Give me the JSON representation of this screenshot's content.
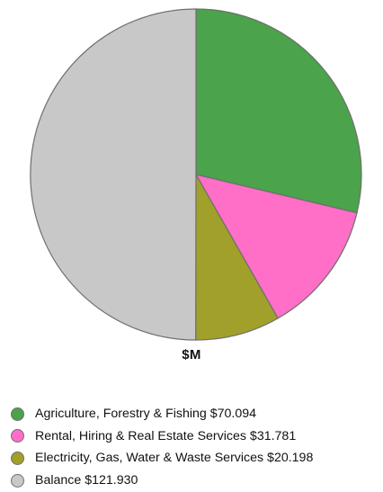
{
  "chart_data": {
    "type": "pie",
    "title": "",
    "unit_label": "$M",
    "legend_position": "bottom",
    "slices": [
      {
        "label": "Agriculture, Forestry & Fishing $70.094",
        "category": "Agriculture, Forestry & Fishing",
        "value": 70.094,
        "color": "#4ba34b"
      },
      {
        "label": "Rental, Hiring & Real Estate Services $31.781",
        "category": "Rental, Hiring & Real Estate Services",
        "value": 31.781,
        "color": "#ff6ec7"
      },
      {
        "label": "Electricity, Gas, Water & Waste Services $20.198",
        "category": "Electricity, Gas, Water & Waste Services",
        "value": 20.198,
        "color": "#a0a02a"
      },
      {
        "label": "Balance $121.930",
        "category": "Balance",
        "value": 121.93,
        "color": "#c8c8c8"
      }
    ]
  }
}
